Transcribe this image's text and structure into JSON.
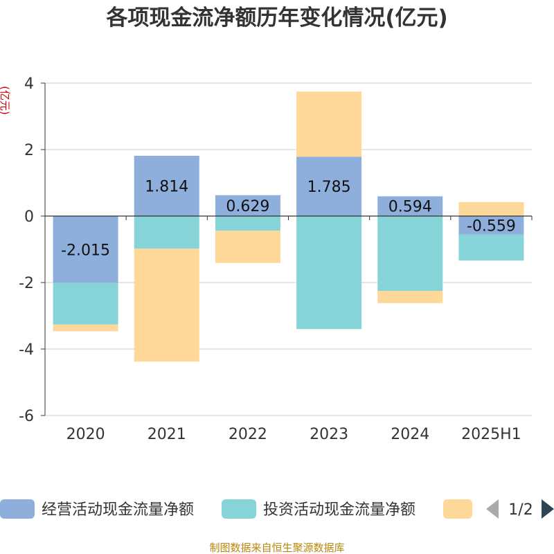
{
  "chart_data": {
    "type": "bar",
    "stacked": true,
    "title": "各项现金流净额历年变化情况(亿元)",
    "ylabel": "(亿元)",
    "categories": [
      "2020",
      "2021",
      "2022",
      "2023",
      "2024",
      "2025H1"
    ],
    "ylim": [
      -6,
      4
    ],
    "yticks": [
      4,
      2,
      0,
      -2,
      -4,
      -6
    ],
    "grid": true,
    "series": [
      {
        "name": "经营活动现金流量净额",
        "color": "#8eaedb",
        "values": [
          -2.015,
          1.814,
          0.629,
          1.785,
          0.594,
          -0.559
        ],
        "labels": [
          "-2.015",
          "1.814",
          "0.629",
          "1.785",
          "0.594",
          "-0.559"
        ]
      },
      {
        "name": "投资活动现金流量净额",
        "color": "#86d4d8",
        "values": [
          -1.25,
          -0.98,
          -0.44,
          -3.4,
          -2.25,
          -0.78
        ]
      },
      {
        "name": "",
        "color": "#fed899",
        "values": [
          -0.2,
          -3.4,
          -0.97,
          1.96,
          -0.37,
          0.42
        ]
      }
    ],
    "legend": {
      "position": "bottom",
      "page": "1/2"
    },
    "source": "制图数据来自恒生聚源数据库"
  }
}
